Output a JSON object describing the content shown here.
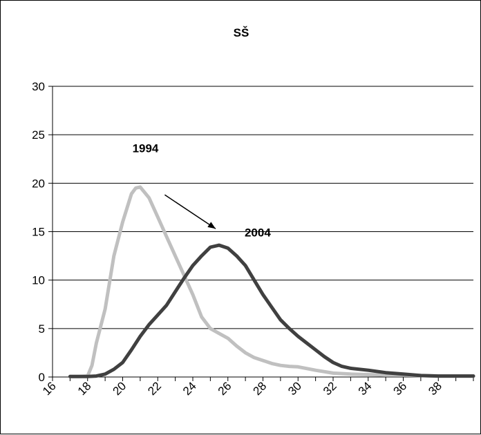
{
  "chart_data": {
    "type": "line",
    "title": "SŠ",
    "xlabel": "",
    "ylabel": "",
    "xlim": [
      16,
      40
    ],
    "ylim": [
      0,
      30
    ],
    "x_ticks": [
      16,
      18,
      20,
      22,
      24,
      26,
      28,
      30,
      32,
      34,
      36,
      38
    ],
    "y_ticks": [
      0,
      5,
      10,
      15,
      20,
      25,
      30
    ],
    "grid": "horizontal",
    "legend": "none",
    "series": [
      {
        "name": "1994",
        "color": "#c0c0c0",
        "x": [
          17,
          17.5,
          18,
          18.25,
          18.5,
          19,
          19.5,
          20,
          20.5,
          20.75,
          21,
          21.5,
          22,
          22.5,
          23,
          23.5,
          24,
          24.5,
          25,
          25.5,
          26,
          26.5,
          27,
          27.5,
          28,
          28.5,
          29,
          29.5,
          30,
          31,
          32,
          33,
          34,
          35,
          36,
          37,
          38,
          39,
          40
        ],
        "y": [
          0.05,
          0.05,
          0.1,
          1.2,
          3.5,
          7,
          12.5,
          16,
          18.9,
          19.5,
          19.6,
          18.5,
          16.5,
          14.5,
          12.5,
          10.5,
          8.5,
          6.2,
          5,
          4.5,
          4,
          3.2,
          2.5,
          2,
          1.7,
          1.4,
          1.2,
          1.1,
          1.05,
          0.7,
          0.4,
          0.3,
          0.25,
          0.2,
          0.2,
          0.15,
          0.1,
          0.1,
          0.1
        ]
      },
      {
        "name": "2004",
        "color": "#404040",
        "x": [
          17,
          18,
          18.5,
          19,
          19.5,
          20,
          20.5,
          21,
          21.5,
          22,
          22.5,
          23,
          23.5,
          24,
          24.5,
          25,
          25.5,
          26,
          26.5,
          27,
          27.5,
          28,
          28.5,
          29,
          29.5,
          30,
          30.5,
          31,
          31.5,
          32,
          32.5,
          33,
          34,
          35,
          36,
          37,
          38,
          39,
          40
        ],
        "y": [
          0.05,
          0.05,
          0.1,
          0.3,
          0.8,
          1.5,
          2.8,
          4.2,
          5.4,
          6.4,
          7.4,
          8.8,
          10.2,
          11.5,
          12.5,
          13.4,
          13.6,
          13.3,
          12.5,
          11.5,
          10,
          8.5,
          7.2,
          5.9,
          5,
          4.2,
          3.5,
          2.8,
          2.1,
          1.5,
          1.1,
          0.9,
          0.7,
          0.45,
          0.3,
          0.15,
          0.1,
          0.1,
          0.1
        ]
      }
    ],
    "annotations": [
      {
        "text": "1994",
        "x": 21.3,
        "y": 23.2
      },
      {
        "text": "2004",
        "x": 27.7,
        "y": 14.5
      }
    ],
    "arrow": {
      "from": [
        22.4,
        18.8
      ],
      "to": [
        25.3,
        15.3
      ]
    }
  }
}
